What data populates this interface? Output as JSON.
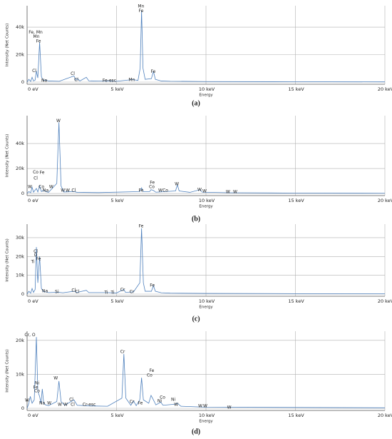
{
  "chart_data": [
    {
      "type": "line",
      "caption": "(a)",
      "xlabel": "Energy",
      "ylabel": "Intensity (Net Counts)",
      "color": "#4f81bd",
      "grid": true,
      "xlim": [
        0,
        20
      ],
      "xticks": [
        {
          "value": 0,
          "label": "0 eV"
        },
        {
          "value": 5,
          "label": "5 keV"
        },
        {
          "value": 10,
          "label": "10 keV"
        },
        {
          "value": 15,
          "label": "15 keV"
        },
        {
          "value": 20,
          "label": "20 keV"
        }
      ],
      "ylim": [
        -1560,
        55600
      ],
      "yticks": [
        0,
        {
          "value": 20000,
          "label": "20k"
        },
        {
          "value": 40000,
          "label": "40k"
        }
      ],
      "x": [
        0,
        0.1,
        0.2,
        0.28,
        0.36,
        0.45,
        0.52,
        0.6,
        0.7,
        0.8,
        0.9,
        1.04,
        1.2,
        1.8,
        2.62,
        2.72,
        2.82,
        2.95,
        3.31,
        3.45,
        4.0,
        4.66,
        5.0,
        5.9,
        6.2,
        6.32,
        6.4,
        6.48,
        6.6,
        6.95,
        7.06,
        7.17,
        7.5,
        8.0,
        10,
        15,
        20
      ],
      "values": [
        0,
        2000,
        500,
        3500,
        800,
        1500,
        8000,
        3000,
        29000,
        4000,
        1200,
        1500,
        800,
        600,
        4500,
        1500,
        2500,
        800,
        3500,
        900,
        700,
        900,
        600,
        1800,
        1200,
        10000,
        52000,
        10000,
        2000,
        2500,
        8000,
        2000,
        800,
        600,
        400,
        250,
        150
      ],
      "annotations": [
        {
          "text": "Fe, Mn",
          "x": 0.48,
          "y": 36000
        },
        {
          "text": "Mn",
          "x": 0.52,
          "y": 33000
        },
        {
          "text": "Fe",
          "x": 0.64,
          "y": 29500
        },
        {
          "text": "Cl",
          "x": 0.4,
          "y": 8000
        },
        {
          "text": "Na",
          "x": 0.96,
          "y": 1000
        },
        {
          "text": "Cl",
          "x": 2.55,
          "y": 6000
        },
        {
          "text": "Cl",
          "x": 2.75,
          "y": 1600
        },
        {
          "text": "Fe-esc",
          "x": 4.6,
          "y": 1000
        },
        {
          "text": "Mn",
          "x": 5.85,
          "y": 1600
        },
        {
          "text": "Mn",
          "x": 6.37,
          "y": 55000
        },
        {
          "text": "Fe",
          "x": 6.37,
          "y": 51800
        },
        {
          "text": "Fe",
          "x": 7.05,
          "y": 7500
        }
      ]
    },
    {
      "type": "line",
      "caption": "(b)",
      "xlabel": "Energy",
      "ylabel": "Intensity (Net Counts)",
      "color": "#4f81bd",
      "grid": true,
      "xlim": [
        0,
        20
      ],
      "xticks": [
        {
          "value": 0,
          "label": "0 eV"
        },
        {
          "value": 5,
          "label": "5 keV"
        },
        {
          "value": 10,
          "label": "10 keV"
        },
        {
          "value": 15,
          "label": "15 keV"
        },
        {
          "value": 20,
          "label": "20 keV"
        }
      ],
      "ylim": [
        -1700,
        62300
      ],
      "yticks": [
        0,
        {
          "value": 20000,
          "label": "20k"
        },
        {
          "value": 40000,
          "label": "40k"
        }
      ],
      "x": [
        0,
        0.1,
        0.2,
        0.28,
        0.36,
        0.52,
        0.6,
        0.7,
        0.8,
        0.93,
        1.04,
        1.2,
        1.66,
        1.78,
        1.9,
        2.05,
        2.62,
        2.8,
        4,
        6.3,
        6.4,
        6.5,
        6.85,
        6.93,
        7.05,
        7.2,
        8.3,
        8.4,
        8.5,
        9.1,
        9.67,
        9.8,
        11.3,
        15,
        20
      ],
      "values": [
        0,
        1500,
        600,
        5000,
        1000,
        4000,
        1200,
        6000,
        1500,
        2500,
        1500,
        900,
        8000,
        57000,
        6000,
        1200,
        1500,
        900,
        700,
        1500,
        4500,
        1500,
        1500,
        3000,
        2500,
        1000,
        2000,
        7000,
        2000,
        900,
        3000,
        1000,
        600,
        300,
        150
      ],
      "annotations": [
        {
          "text": "W",
          "x": 1.75,
          "y": 58000
        },
        {
          "text": "Co",
          "x": 0.48,
          "y": 17000
        },
        {
          "text": "Fe",
          "x": 0.84,
          "y": 16600
        },
        {
          "text": "Cl",
          "x": 0.48,
          "y": 12000
        },
        {
          "text": "W",
          "x": 0.16,
          "y": 5100
        },
        {
          "text": "Co",
          "x": 0.8,
          "y": 5100
        },
        {
          "text": "Na",
          "x": 1.04,
          "y": 2300
        },
        {
          "text": "W",
          "x": 1.35,
          "y": 5100
        },
        {
          "text": "W",
          "x": 2.0,
          "y": 2300
        },
        {
          "text": "W",
          "x": 2.27,
          "y": 2300
        },
        {
          "text": "Cl",
          "x": 2.6,
          "y": 2300
        },
        {
          "text": "Fe",
          "x": 6.37,
          "y": 2300
        },
        {
          "text": "Fe",
          "x": 7.0,
          "y": 8600
        },
        {
          "text": "Co",
          "x": 6.97,
          "y": 5100
        },
        {
          "text": "W",
          "x": 7.45,
          "y": 2300
        },
        {
          "text": "Co",
          "x": 7.73,
          "y": 2300
        },
        {
          "text": "W",
          "x": 8.37,
          "y": 7400
        },
        {
          "text": "W",
          "x": 9.64,
          "y": 2900
        },
        {
          "text": "W",
          "x": 9.92,
          "y": 1700
        },
        {
          "text": "W",
          "x": 11.23,
          "y": 1100
        },
        {
          "text": "W",
          "x": 11.63,
          "y": 1100
        }
      ]
    },
    {
      "type": "line",
      "caption": "(c)",
      "xlabel": "Energy",
      "ylabel": "Intensity (Net Counts)",
      "color": "#4f81bd",
      "grid": true,
      "xlim": [
        0,
        20
      ],
      "xticks": [
        {
          "value": 0,
          "label": "0 eV"
        },
        {
          "value": 5,
          "label": "5 keV"
        },
        {
          "value": 10,
          "label": "10 keV"
        },
        {
          "value": 15,
          "label": "15 keV"
        },
        {
          "value": 20,
          "label": "20 keV"
        }
      ],
      "ylim": [
        -1140,
        37200
      ],
      "yticks": [
        0,
        {
          "value": 10000,
          "label": "10k"
        },
        {
          "value": 20000,
          "label": "20k"
        },
        {
          "value": 30000,
          "label": "30k"
        }
      ],
      "x": [
        0,
        0.1,
        0.2,
        0.28,
        0.36,
        0.45,
        0.52,
        0.6,
        0.7,
        0.8,
        0.93,
        1.04,
        1.2,
        1.74,
        2.0,
        2.62,
        2.8,
        3.31,
        3.45,
        4.51,
        5.0,
        5.41,
        5.5,
        5.95,
        6.3,
        6.4,
        6.5,
        6.6,
        6.95,
        7.06,
        7.17,
        7.5,
        8,
        10,
        15,
        20
      ],
      "values": [
        0,
        1500,
        500,
        3000,
        900,
        2500,
        25000,
        6000,
        20000,
        3000,
        1200,
        1200,
        800,
        1000,
        700,
        1500,
        900,
        2000,
        800,
        800,
        600,
        2500,
        900,
        1200,
        6000,
        35000,
        6000,
        1500,
        1500,
        4500,
        1500,
        700,
        500,
        350,
        250,
        150
      ],
      "annotations": [
        {
          "text": "Cl",
          "x": 0.48,
          "y": 22500
        },
        {
          "text": "O",
          "x": 0.48,
          "y": 20600
        },
        {
          "text": "Fe",
          "x": 0.64,
          "y": 18600
        },
        {
          "text": "Ti",
          "x": 0.32,
          "y": 17000
        },
        {
          "text": "Na",
          "x": 1.0,
          "y": 1500
        },
        {
          "text": "Si",
          "x": 1.67,
          "y": 1100
        },
        {
          "text": "Cl",
          "x": 2.6,
          "y": 1900
        },
        {
          "text": "Cl",
          "x": 2.8,
          "y": 1100
        },
        {
          "text": "Ti",
          "x": 4.42,
          "y": 700
        },
        {
          "text": "Ti",
          "x": 4.78,
          "y": 700
        },
        {
          "text": "Cr",
          "x": 5.34,
          "y": 2200
        },
        {
          "text": "Cr",
          "x": 5.86,
          "y": 1100
        },
        {
          "text": "Fe",
          "x": 6.37,
          "y": 36000
        },
        {
          "text": "Fe",
          "x": 7.0,
          "y": 4600
        }
      ]
    },
    {
      "type": "line",
      "caption": "(d)",
      "xlabel": "Energy",
      "ylabel": "Intensity (Net Counts)",
      "color": "#4f81bd",
      "grid": true,
      "xlim": [
        0,
        20
      ],
      "xticks": [
        {
          "value": 0,
          "label": "0 eV"
        },
        {
          "value": 5,
          "label": "5 keV"
        },
        {
          "value": 10,
          "label": "10 keV"
        },
        {
          "value": 15,
          "label": "15 keV"
        },
        {
          "value": 20,
          "label": "20 keV"
        }
      ],
      "ylim": [
        -630,
        22700
      ],
      "yticks": [
        0,
        {
          "value": 10000,
          "label": "10k"
        },
        {
          "value": 20000,
          "label": "20k"
        }
      ],
      "x": [
        0,
        0.1,
        0.18,
        0.28,
        0.4,
        0.52,
        0.6,
        0.7,
        0.78,
        0.85,
        0.93,
        1.04,
        1.2,
        1.66,
        1.78,
        1.9,
        2.1,
        2.62,
        2.8,
        3.5,
        4.5,
        5.3,
        5.41,
        5.52,
        5.8,
        5.95,
        6.1,
        6.3,
        6.4,
        6.5,
        6.8,
        6.93,
        7.06,
        7.2,
        7.47,
        7.6,
        8.26,
        8.4,
        8.6,
        9.7,
        10,
        15,
        20
      ],
      "values": [
        0,
        1500,
        3500,
        1500,
        2500,
        21000,
        5000,
        3500,
        1500,
        5700,
        1500,
        1000,
        800,
        2000,
        8000,
        2000,
        900,
        2500,
        900,
        700,
        600,
        3000,
        16000,
        3000,
        900,
        2200,
        800,
        2500,
        9000,
        2500,
        1500,
        3800,
        2500,
        1000,
        1800,
        900,
        1200,
        1500,
        600,
        400,
        350,
        250,
        150
      ],
      "annotations": [
        {
          "text": "Cr, O",
          "x": 0.16,
          "y": 21500
        },
        {
          "text": "W",
          "x": 0.0,
          "y": 2300
        },
        {
          "text": "Ni",
          "x": 0.56,
          "y": 7400
        },
        {
          "text": "Fe",
          "x": 0.48,
          "y": 6100
        },
        {
          "text": "Co",
          "x": 0.56,
          "y": 5000
        },
        {
          "text": "Na",
          "x": 0.84,
          "y": 1500
        },
        {
          "text": "W",
          "x": 1.24,
          "y": 1500
        },
        {
          "text": "W",
          "x": 1.6,
          "y": 8800
        },
        {
          "text": "W",
          "x": 1.83,
          "y": 1000
        },
        {
          "text": "W",
          "x": 2.15,
          "y": 1000
        },
        {
          "text": "Cl",
          "x": 2.47,
          "y": 2500
        },
        {
          "text": "Cl",
          "x": 2.55,
          "y": 1000
        },
        {
          "text": "Cr-esc",
          "x": 3.47,
          "y": 1000
        },
        {
          "text": "Cr",
          "x": 5.34,
          "y": 16600
        },
        {
          "text": "Cr",
          "x": 5.86,
          "y": 1900
        },
        {
          "text": "Fe",
          "x": 6.33,
          "y": 1500
        },
        {
          "text": "Fe",
          "x": 6.97,
          "y": 11000
        },
        {
          "text": "Co",
          "x": 6.85,
          "y": 9700
        },
        {
          "text": "Co",
          "x": 7.57,
          "y": 3200
        },
        {
          "text": "Ni",
          "x": 7.41,
          "y": 2100
        },
        {
          "text": "Ni",
          "x": 8.17,
          "y": 2500
        },
        {
          "text": "W",
          "x": 8.33,
          "y": 1000
        },
        {
          "text": "W",
          "x": 9.68,
          "y": 600
        },
        {
          "text": "W",
          "x": 9.96,
          "y": 600
        },
        {
          "text": "W",
          "x": 11.3,
          "y": 200
        }
      ]
    }
  ]
}
